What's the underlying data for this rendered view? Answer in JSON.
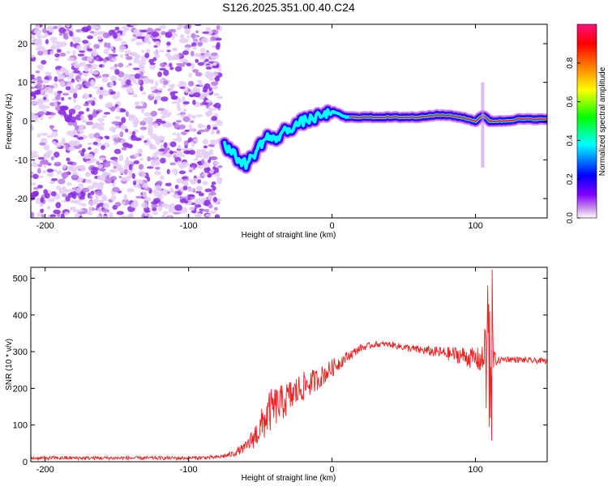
{
  "chart_data": [
    {
      "type": "heatmap",
      "title": "S126.2025.351.00.40.C24",
      "xlabel": "Height of straight line (km)",
      "ylabel": "Frequency (Hz)",
      "xlim": [
        -210,
        150
      ],
      "ylim": [
        -25,
        25
      ],
      "xticks": [
        -200,
        -100,
        0,
        100
      ],
      "yticks": [
        -20,
        -10,
        0,
        10,
        20
      ],
      "colorbar": {
        "label": "Normalized spectral amplitude",
        "range": [
          0,
          1
        ],
        "ticks": [
          "0.0",
          "0.2",
          "0.4",
          "0.6",
          "0.8"
        ],
        "colors": [
          "#ffffff",
          "#c890e8",
          "#8000ff",
          "#0000ff",
          "#00ffff",
          "#00ff00",
          "#ffff00",
          "#ff8000",
          "#ff0000",
          "#ff1080"
        ]
      },
      "carrier_track": {
        "x": [
          -75,
          -70,
          -65,
          -60,
          -55,
          -50,
          -45,
          -40,
          -35,
          -30,
          -25,
          -20,
          -15,
          -10,
          -5,
          0,
          10,
          20,
          30,
          40,
          50,
          60,
          70,
          80,
          90,
          100,
          105,
          110,
          120,
          130,
          140,
          150
        ],
        "frequency": [
          -6,
          -8,
          -10,
          -11,
          -9,
          -6,
          -4,
          -5,
          -3,
          -2,
          -1,
          0,
          0.5,
          1,
          1.5,
          2.5,
          1,
          1,
          1,
          1,
          1,
          1,
          1.5,
          1.5,
          1,
          0,
          1.5,
          0,
          0,
          0.5,
          0.5,
          0.5
        ]
      },
      "noise_region": {
        "x_from": -210,
        "x_to": -78,
        "amplitude_range": [
          0.0,
          0.25
        ]
      }
    },
    {
      "type": "line",
      "title": "",
      "xlabel": "Height of straight line (km)",
      "ylabel": "SNR (10 * v/v)",
      "xlim": [
        -210,
        150
      ],
      "ylim": [
        0,
        530
      ],
      "xticks": [
        -200,
        -100,
        0,
        100
      ],
      "yticks": [
        0,
        100,
        200,
        300,
        400,
        500
      ],
      "series": [
        {
          "name": "SNR",
          "color": "#ee2222",
          "x": [
            -210,
            -100,
            -80,
            -70,
            -60,
            -50,
            -45,
            -40,
            -35,
            -30,
            -25,
            -20,
            -15,
            -10,
            -5,
            0,
            10,
            20,
            30,
            40,
            50,
            60,
            70,
            80,
            90,
            100,
            105,
            108,
            110,
            115,
            120,
            130,
            140,
            150
          ],
          "y": [
            10,
            10,
            12,
            20,
            40,
            90,
            130,
            150,
            160,
            175,
            190,
            205,
            215,
            225,
            240,
            255,
            285,
            310,
            320,
            320,
            312,
            305,
            300,
            295,
            290,
            280,
            275,
            280,
            280,
            275,
            280,
            278,
            275,
            275
          ],
          "noise_amplitude": [
            5,
            5,
            5,
            8,
            15,
            45,
            60,
            55,
            50,
            48,
            45,
            40,
            35,
            30,
            28,
            25,
            15,
            10,
            8,
            8,
            10,
            12,
            14,
            18,
            25,
            30,
            40,
            60,
            60,
            10,
            8,
            8,
            8,
            8
          ]
        }
      ]
    }
  ]
}
